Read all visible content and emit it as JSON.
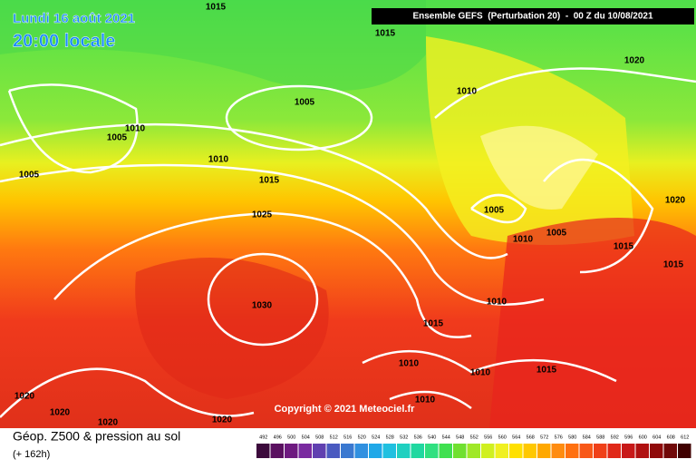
{
  "header": {
    "date": "Lundi 16 août 2021",
    "time": "20:00 locale",
    "model": "Ensemble GEFS  (Perturbation 20)  -  00 Z du 10/08/2021"
  },
  "isobar_labels": [
    1015,
    1015,
    1020,
    1010,
    1005,
    1010,
    1005,
    1005,
    1010,
    1015,
    1025,
    1005,
    1010,
    1005,
    1020,
    1015,
    1015,
    1030,
    1010,
    1015,
    1010,
    1010,
    1015,
    1010,
    1020,
    1020,
    1020,
    1020
  ],
  "copyright": "Copyright © 2021 Meteociel.fr",
  "footer": {
    "title": "Géop. Z500 & pression au sol",
    "lead": "(+ 162h)"
  },
  "scale": [
    492,
    496,
    500,
    504,
    508,
    512,
    516,
    520,
    524,
    528,
    532,
    536,
    540,
    544,
    548,
    552,
    556,
    560,
    564,
    568,
    572,
    576,
    580,
    584,
    588,
    592,
    596,
    600,
    604,
    608,
    612
  ]
}
